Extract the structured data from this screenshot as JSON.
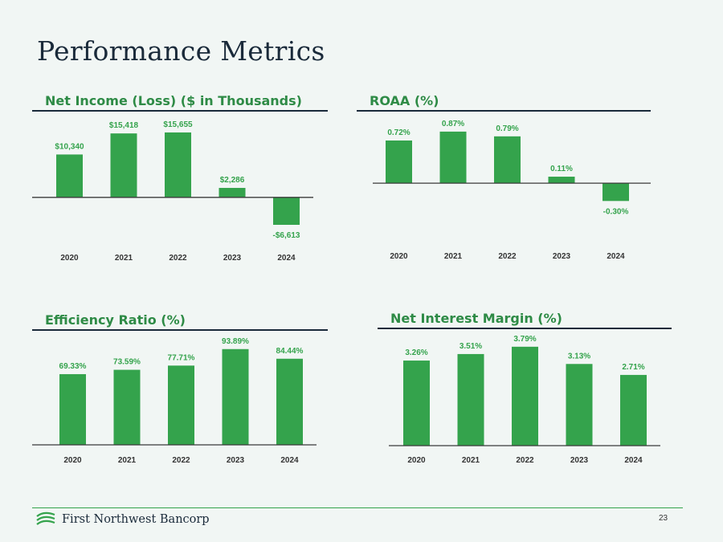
{
  "title": "Performance Metrics",
  "chart_data": [
    {
      "type": "bar",
      "title": "Net Income (Loss) ($ in Thousands)",
      "categories": [
        "2020",
        "2021",
        "2022",
        "2023",
        "2024"
      ],
      "values": [
        10340,
        15418,
        15655,
        2286,
        -6613
      ],
      "labels": [
        "$10,340",
        "$15,418",
        "$15,655",
        "$2,286",
        "-$6,613"
      ],
      "ylim": [
        -7000,
        17000
      ]
    },
    {
      "type": "bar",
      "title": "ROAA (%)",
      "categories": [
        "2020",
        "2021",
        "2022",
        "2023",
        "2024"
      ],
      "values": [
        0.72,
        0.87,
        0.79,
        0.11,
        -0.3
      ],
      "labels": [
        "0.72%",
        "0.87%",
        "0.79%",
        "0.11%",
        "-0.30%"
      ],
      "ylim": [
        -0.35,
        0.95
      ]
    },
    {
      "type": "bar",
      "title": "Efficiency Ratio (%)",
      "categories": [
        "2020",
        "2021",
        "2022",
        "2023",
        "2024"
      ],
      "values": [
        69.33,
        73.59,
        77.71,
        93.89,
        84.44
      ],
      "labels": [
        "69.33%",
        "73.59%",
        "77.71%",
        "93.89%",
        "84.44%"
      ],
      "ylim": [
        0,
        100
      ]
    },
    {
      "type": "bar",
      "title": "Net Interest Margin (%)",
      "categories": [
        "2020",
        "2021",
        "2022",
        "2023",
        "2024"
      ],
      "values": [
        3.26,
        3.51,
        3.79,
        3.13,
        2.71
      ],
      "labels": [
        "3.26%",
        "3.51%",
        "3.79%",
        "3.13%",
        "2.71%"
      ],
      "ylim": [
        0,
        4
      ]
    }
  ],
  "footer": {
    "brand_name": "First Northwest Bancorp",
    "page_number": "23"
  },
  "colors": {
    "bar": "#34a34c",
    "title_green": "#2e8b46",
    "dark": "#1a2a3a"
  }
}
